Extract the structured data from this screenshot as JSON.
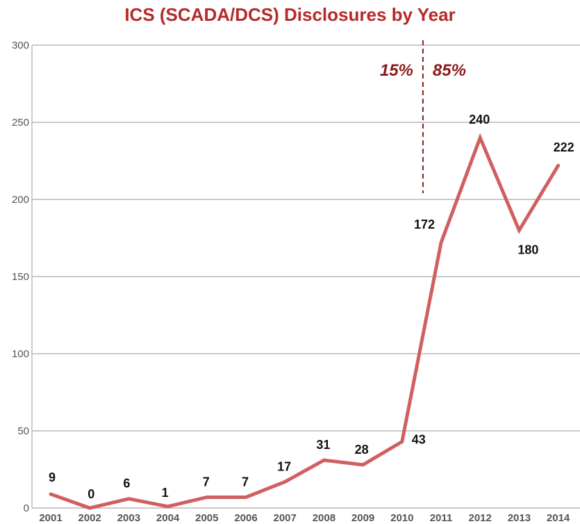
{
  "colors": {
    "title": "#b52a2a",
    "line": "#d06060",
    "divider": "#8b1a1a",
    "grid": "#aaaaaa",
    "share_text": "#8b1a1a"
  },
  "chart_data": {
    "type": "line",
    "title": "ICS (SCADA/DCS) Disclosures by Year",
    "xlabel": "",
    "ylabel": "",
    "x": [
      "2001",
      "2002",
      "2003",
      "2004",
      "2005",
      "2006",
      "2007",
      "2008",
      "2009",
      "2010",
      "2011",
      "2012",
      "2013",
      "2014"
    ],
    "series": [
      {
        "values": [
          9,
          0,
          6,
          1,
          7,
          7,
          17,
          31,
          28,
          43,
          172,
          240,
          180,
          222
        ]
      }
    ],
    "data_labels": [
      "9",
      "0",
      "6",
      "1",
      "7",
      "7",
      "17",
      "31",
      "28",
      "43",
      "172",
      "240",
      "180",
      "222"
    ],
    "ylim": [
      0,
      300
    ],
    "yticks": [
      0,
      50,
      100,
      150,
      200,
      250,
      300
    ],
    "ytick_labels": [
      "0",
      "50",
      "100",
      "150",
      "200",
      "250",
      "300"
    ],
    "grid": true,
    "legend": "none",
    "divider": {
      "between": [
        "2010",
        "2011"
      ],
      "left_text": "15%",
      "right_text": "85%"
    }
  }
}
